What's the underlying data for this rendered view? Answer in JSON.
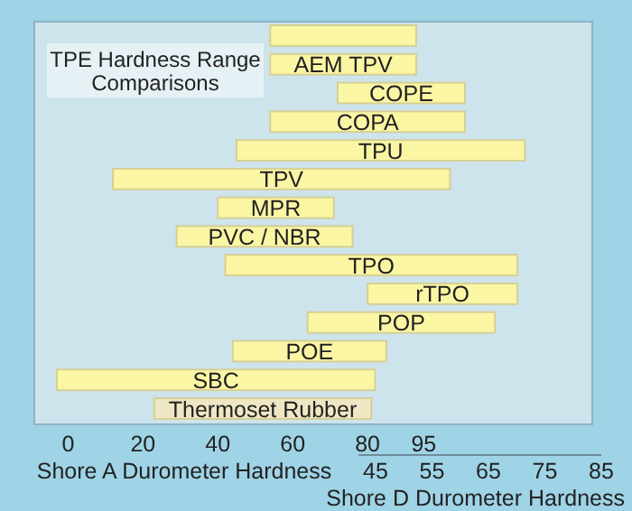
{
  "chart_data": {
    "type": "bar",
    "orientation": "horizontal",
    "title": "TPE Hardness Range Comparisons",
    "xlabel": "Shore A Durometer Hardness",
    "x2label": "Shore D Durometer Hardness",
    "categories": [
      null,
      "AEM TPV",
      "COPE",
      "COPA",
      "TPU",
      "TPV",
      "MPR",
      "PVC / NBR",
      "TPO",
      "rTPO",
      "POP",
      "POE",
      "SBC",
      "Thermoset Rubber"
    ],
    "base": [
      54,
      54,
      72,
      54,
      45,
      12,
      40,
      29,
      42,
      80,
      64,
      44,
      -3,
      23
    ],
    "values": [
      39,
      39,
      34,
      52,
      77,
      90,
      31,
      47,
      78,
      40,
      50,
      41,
      85,
      58
    ],
    "colors": [
      "#fbf6a4",
      "#fbf6a4",
      "#fbf6a4",
      "#fbf6a4",
      "#fbf6a4",
      "#fbf6a4",
      "#fbf6a4",
      "#fbf6a4",
      "#fbf6a4",
      "#fbf6a4",
      "#fbf6a4",
      "#fbf6a4",
      "#fbf6a4",
      "#efe6c4"
    ],
    "xlim": [
      -9,
      140
    ],
    "xticks": [
      0,
      20,
      40,
      60,
      80,
      95
    ],
    "x2lim": [
      42,
      85
    ],
    "x2ticks": [
      45,
      55,
      65,
      75,
      85
    ]
  }
}
